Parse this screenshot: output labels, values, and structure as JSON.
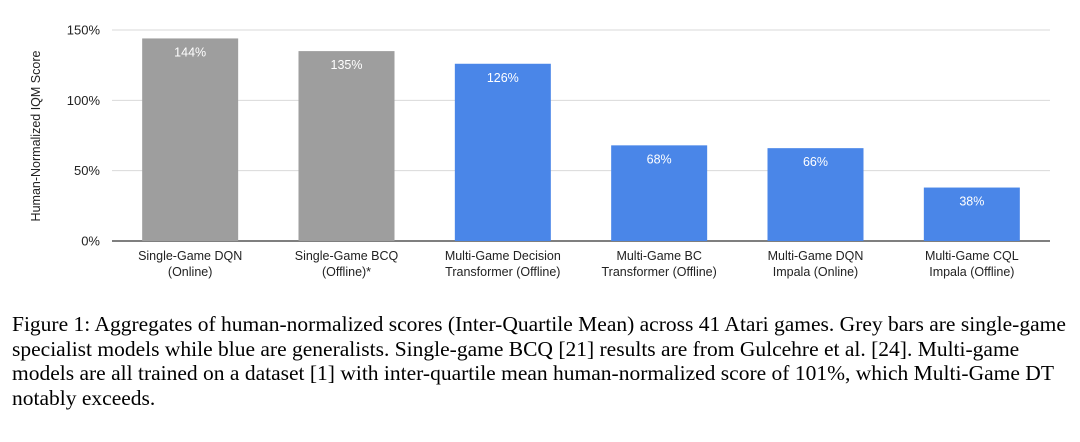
{
  "chart_data": {
    "type": "bar",
    "title": "",
    "xlabel": "",
    "ylabel": "Human-Normalized IQM Score",
    "ylim": [
      0,
      150
    ],
    "yticks": [
      "0%",
      "50%",
      "100%",
      "150%"
    ],
    "ytick_values": [
      0,
      50,
      100,
      150
    ],
    "grid": true,
    "categories": [
      [
        "Single-Game DQN",
        "(Online)"
      ],
      [
        "Single-Game BCQ",
        "(Offline)*"
      ],
      [
        "Multi-Game Decision",
        "Transformer (Offline)"
      ],
      [
        "Multi-Game BC",
        "Transformer (Offline)"
      ],
      [
        "Multi-Game DQN",
        "Impala (Online)"
      ],
      [
        "Multi-Game CQL",
        "Impala (Offline)"
      ]
    ],
    "values": [
      144,
      135,
      126,
      68,
      66,
      38
    ],
    "value_labels": [
      "144%",
      "135%",
      "126%",
      "68%",
      "66%",
      "38%"
    ],
    "bar_colors": [
      "#9e9e9e",
      "#9e9e9e",
      "#4a86e8",
      "#4a86e8",
      "#4a86e8",
      "#4a86e8"
    ],
    "grid_color": "#d9d9d9",
    "axis_color": "#333333"
  },
  "caption": {
    "label": "Figure 1:",
    "text": "Aggregates of human-normalized scores (Inter-Quartile Mean) across 41 Atari games. Grey bars are single-game specialist models while blue are generalists. Single-game BCQ [21] results are from Gulcehre et al. [24]. Multi-game models are all trained on a dataset [1] with inter-quartile mean human-normalized score of 101%, which Multi-Game DT notably exceeds."
  }
}
